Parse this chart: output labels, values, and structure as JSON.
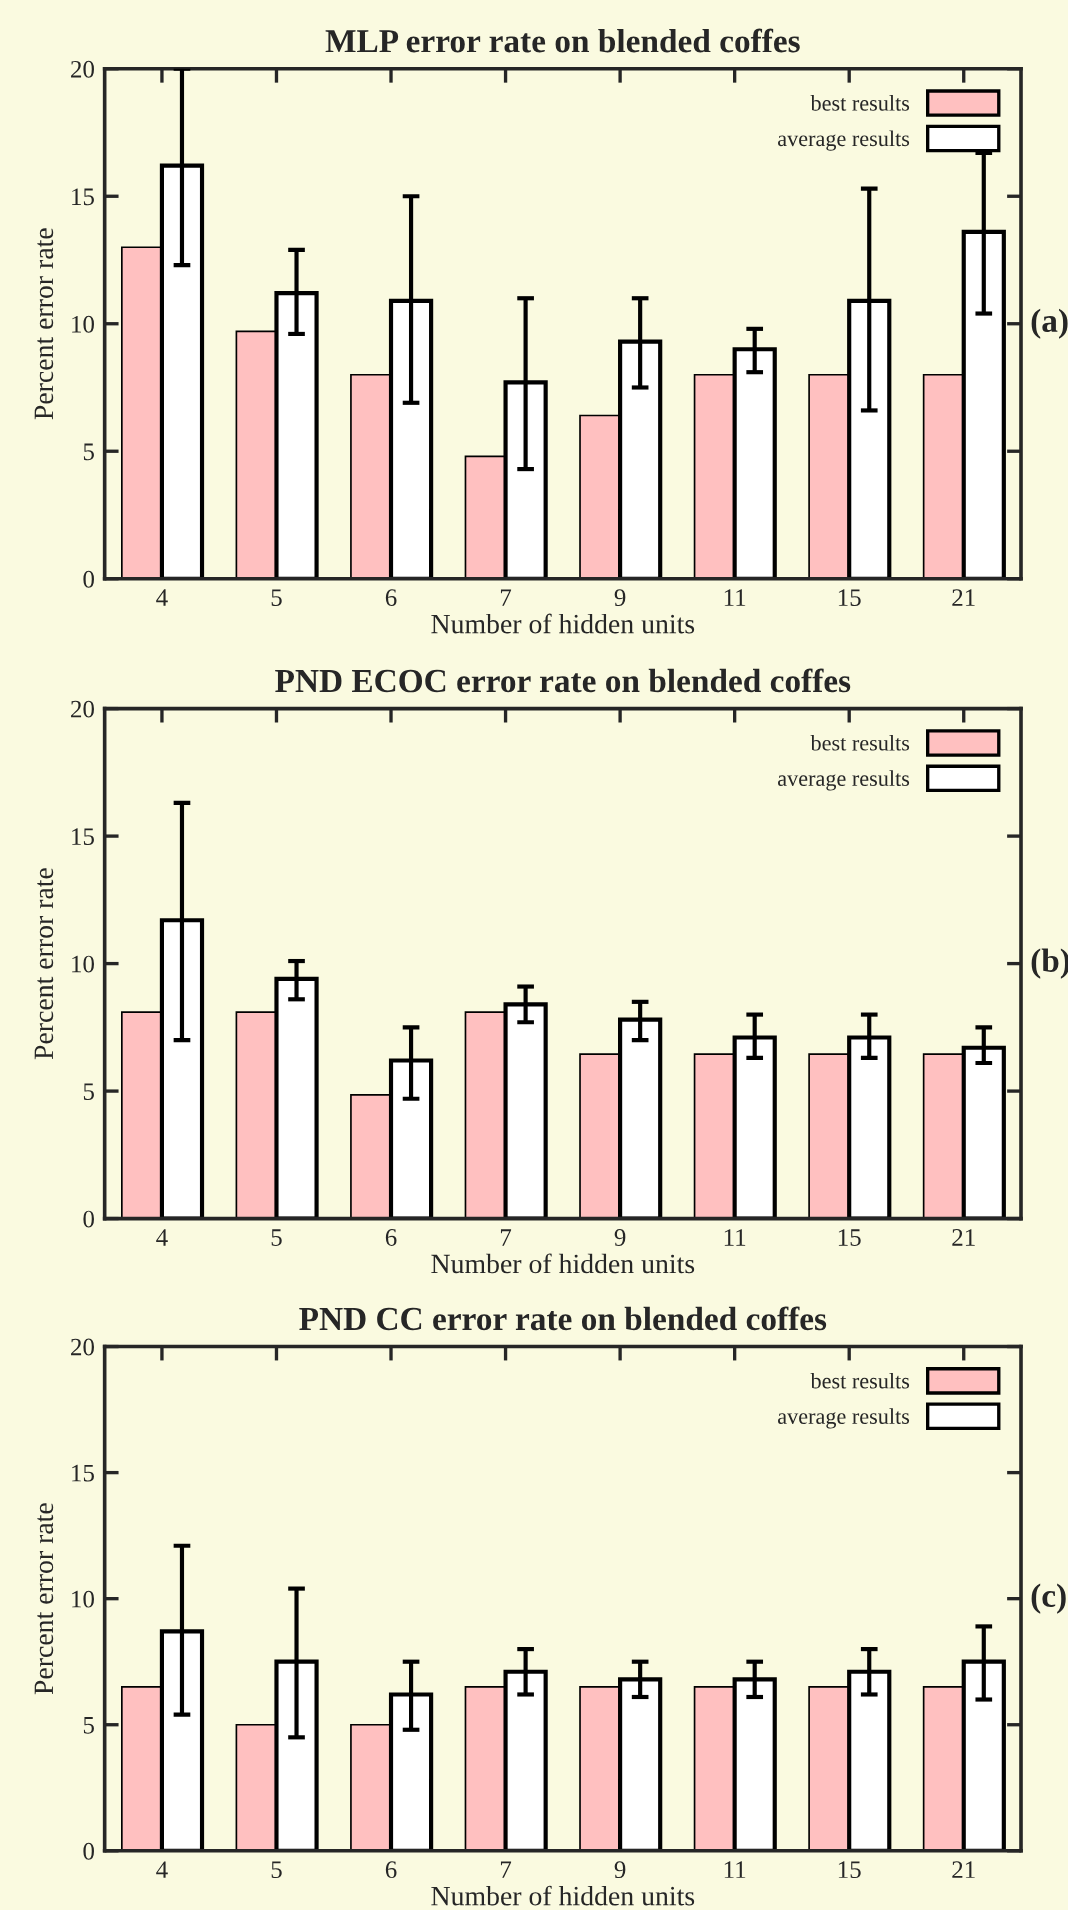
{
  "chart_data": [
    {
      "type": "bar",
      "title": "MLP error rate on blended coffes",
      "xlabel": "Number of hidden units",
      "ylabel": "Percent error rate",
      "categories": [
        "4",
        "5",
        "6",
        "7",
        "9",
        "11",
        "15",
        "21"
      ],
      "ylim": [
        0,
        20
      ],
      "yticks": [
        0,
        5,
        10,
        15,
        20
      ],
      "legend": "top right",
      "grid": false,
      "annotations": [
        "(a)"
      ],
      "series": [
        {
          "name": "best results",
          "color": "#ffc0c0",
          "values": [
            13,
            9.7,
            8.0,
            4.8,
            6.4,
            8.0,
            8.0,
            8.0
          ]
        },
        {
          "name": "average results",
          "color": "#ffffff",
          "values": [
            16.2,
            11.2,
            10.9,
            7.7,
            9.3,
            9.0,
            10.9,
            13.6
          ],
          "errors": [
            [
              12.3,
              20.0
            ],
            [
              9.6,
              12.9
            ],
            [
              6.9,
              15.0
            ],
            [
              4.3,
              11.0
            ],
            [
              7.5,
              11.0
            ],
            [
              8.1,
              9.8
            ],
            [
              6.6,
              15.3
            ],
            [
              10.4,
              16.7
            ]
          ]
        }
      ]
    },
    {
      "type": "bar",
      "title": "PND ECOC error rate on blended coffes",
      "xlabel": "Number of hidden units",
      "ylabel": "Percent error rate",
      "categories": [
        "4",
        "5",
        "6",
        "7",
        "9",
        "11",
        "15",
        "21"
      ],
      "ylim": [
        0,
        20
      ],
      "yticks": [
        0,
        5,
        10,
        15,
        20
      ],
      "legend": "top right",
      "grid": false,
      "annotations": [
        "(b)"
      ],
      "series": [
        {
          "name": "best results",
          "color": "#ffc0c0",
          "values": [
            8.1,
            8.1,
            4.85,
            8.1,
            6.45,
            6.45,
            6.45,
            6.45
          ]
        },
        {
          "name": "average results",
          "color": "#ffffff",
          "values": [
            11.7,
            9.4,
            6.2,
            8.4,
            7.8,
            7.1,
            7.1,
            6.7
          ],
          "errors": [
            [
              7.0,
              16.3
            ],
            [
              8.6,
              10.1
            ],
            [
              4.7,
              7.5
            ],
            [
              7.7,
              9.1
            ],
            [
              7.0,
              8.5
            ],
            [
              6.3,
              8.0
            ],
            [
              6.3,
              8.0
            ],
            [
              6.1,
              7.5
            ]
          ]
        }
      ]
    },
    {
      "type": "bar",
      "title": "PND CC error rate on blended coffes",
      "xlabel": "Number of hidden units",
      "ylabel": "Percent error rate",
      "categories": [
        "4",
        "5",
        "6",
        "7",
        "9",
        "11",
        "15",
        "21"
      ],
      "ylim": [
        0,
        20
      ],
      "yticks": [
        0,
        5,
        10,
        15,
        20
      ],
      "legend": "top right",
      "grid": false,
      "annotations": [
        "(c)"
      ],
      "series": [
        {
          "name": "best results",
          "color": "#ffc0c0",
          "values": [
            6.5,
            5.0,
            5.0,
            6.5,
            6.5,
            6.5,
            6.5,
            6.5
          ]
        },
        {
          "name": "average results",
          "color": "#ffffff",
          "values": [
            8.7,
            7.5,
            6.2,
            7.1,
            6.8,
            6.8,
            7.1,
            7.5
          ],
          "errors": [
            [
              5.4,
              12.1
            ],
            [
              4.5,
              10.4
            ],
            [
              4.8,
              7.5
            ],
            [
              6.2,
              8.0
            ],
            [
              6.1,
              7.5
            ],
            [
              6.1,
              7.5
            ],
            [
              6.2,
              8.0
            ],
            [
              6.0,
              8.9
            ]
          ]
        }
      ]
    }
  ]
}
